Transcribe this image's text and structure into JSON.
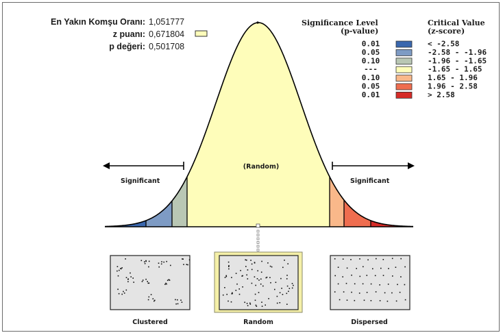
{
  "stats": {
    "nn_ratio_label": "En Yakın Komşu Oranı:",
    "nn_ratio_value": "1,051777",
    "z_label": "z puanı:",
    "z_value": "0,671804",
    "p_label": "p değeri:",
    "p_value": "0,501708"
  },
  "legend": {
    "significance_title": "Significance Level",
    "significance_sub": "(p-value)",
    "critical_title": "Critical Value",
    "critical_sub": "(z-score)",
    "rows": [
      {
        "p": "0.01",
        "z": "< -2.58",
        "color": "#3a67ae"
      },
      {
        "p": "0.05",
        "z": "-2.58 - -1.96",
        "color": "#7e9bc4"
      },
      {
        "p": "0.10",
        "z": "-1.96 - -1.65",
        "color": "#b9c7b4"
      },
      {
        "p": "---",
        "z": "-1.65 - 1.65",
        "color": "#fefdba"
      },
      {
        "p": "0.10",
        "z": "1.65 - 1.96",
        "color": "#f9b88a"
      },
      {
        "p": "0.05",
        "z": "1.96 - 2.58",
        "color": "#ef6d4f"
      },
      {
        "p": "0.01",
        "z": "> 2.58",
        "color": "#d52b27"
      }
    ]
  },
  "curve": {
    "center_label": "(Random)",
    "left_label": "Significant",
    "right_label": "Significant"
  },
  "patterns": {
    "clustered": "Clustered",
    "random": "Random",
    "dispersed": "Dispersed"
  },
  "colors": {
    "random_highlight": "#f5f0a8",
    "curve_outline": "#000000",
    "z_marker": "#fefdba"
  }
}
